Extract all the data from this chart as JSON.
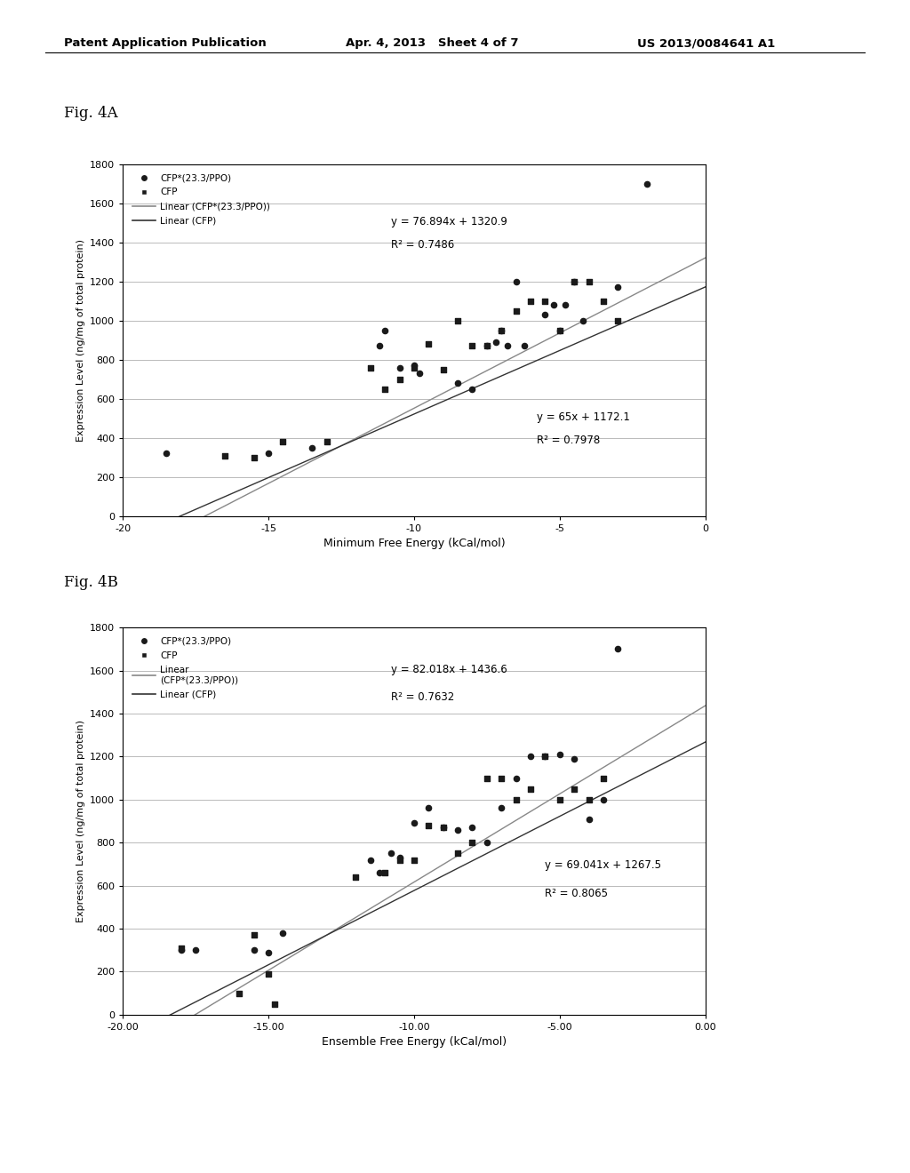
{
  "header_left": "Patent Application Publication",
  "header_mid": "Apr. 4, 2013   Sheet 4 of 7",
  "header_right": "US 2013/0084641 A1",
  "fig4a_label": "Fig. 4A",
  "fig4b_label": "Fig. 4B",
  "fig4a": {
    "cfp_ppo_x": [
      -18.5,
      -15.0,
      -13.5,
      -11.2,
      -11.0,
      -10.5,
      -10.0,
      -9.8,
      -8.5,
      -8.0,
      -7.5,
      -7.2,
      -7.0,
      -6.8,
      -6.5,
      -6.2,
      -5.5,
      -5.2,
      -5.0,
      -4.8,
      -4.5,
      -4.2,
      -3.0,
      -2.0
    ],
    "cfp_ppo_y": [
      320,
      320,
      350,
      870,
      950,
      760,
      770,
      730,
      680,
      650,
      870,
      890,
      950,
      870,
      1200,
      870,
      1030,
      1080,
      950,
      1080,
      1200,
      1000,
      1170,
      1700
    ],
    "cfp_x": [
      -16.5,
      -15.5,
      -14.5,
      -13.0,
      -11.5,
      -11.0,
      -10.5,
      -10.0,
      -9.5,
      -9.0,
      -8.5,
      -8.0,
      -7.5,
      -7.0,
      -6.5,
      -6.0,
      -5.5,
      -5.0,
      -4.5,
      -4.0,
      -3.5,
      -3.0
    ],
    "cfp_y": [
      310,
      300,
      380,
      380,
      760,
      650,
      700,
      760,
      880,
      750,
      1000,
      870,
      870,
      950,
      1050,
      1100,
      1100,
      950,
      1200,
      1200,
      1100,
      1000
    ],
    "line1_eq": "y = 76.894x + 1320.9",
    "line1_r2": "R² = 0.7486",
    "line2_eq": "y = 65x + 1172.1",
    "line2_r2": "R² = 0.7978",
    "slope1": 76.894,
    "intercept1": 1320.9,
    "slope2": 65.0,
    "intercept2": 1172.1,
    "xlabel": "Minimum Free Energy (kCal/mol)",
    "ylabel": "Expression Level (ng/mg of total protein)",
    "xlim": [
      -20,
      0
    ],
    "ylim": [
      0,
      1800
    ],
    "xticks": [
      -20,
      -15,
      -10,
      -5,
      0
    ],
    "xticklabels": [
      "-20",
      "-15",
      "-10",
      "-5",
      "0"
    ],
    "yticks": [
      0,
      200,
      400,
      600,
      800,
      1000,
      1200,
      1400,
      1600,
      1800
    ]
  },
  "fig4b": {
    "cfp_ppo_x": [
      -18.0,
      -17.5,
      -15.5,
      -15.0,
      -14.5,
      -11.5,
      -11.2,
      -10.8,
      -10.5,
      -10.0,
      -9.5,
      -9.0,
      -8.5,
      -8.0,
      -7.5,
      -7.0,
      -6.5,
      -6.0,
      -5.5,
      -5.0,
      -4.5,
      -4.0,
      -3.5,
      -3.0
    ],
    "cfp_ppo_y": [
      300,
      300,
      300,
      290,
      380,
      720,
      660,
      750,
      730,
      890,
      960,
      870,
      860,
      870,
      800,
      960,
      1100,
      1200,
      1200,
      1210,
      1190,
      910,
      1000,
      1700
    ],
    "cfp_x": [
      -18.0,
      -16.0,
      -15.5,
      -15.0,
      -14.8,
      -12.0,
      -11.0,
      -10.5,
      -10.0,
      -9.5,
      -9.0,
      -8.5,
      -8.0,
      -7.5,
      -7.0,
      -6.5,
      -6.0,
      -5.5,
      -5.0,
      -4.5,
      -4.0,
      -3.5
    ],
    "cfp_y": [
      310,
      100,
      370,
      190,
      50,
      640,
      660,
      720,
      720,
      880,
      870,
      750,
      800,
      1100,
      1100,
      1000,
      1050,
      1200,
      1000,
      1050,
      1000,
      1100
    ],
    "line1_eq": "y = 82.018x + 1436.6",
    "line1_r2": "R² = 0.7632",
    "line2_eq": "y = 69.041x + 1267.5",
    "line2_r2": "R² = 0.8065",
    "slope1": 82.018,
    "intercept1": 1436.6,
    "slope2": 69.041,
    "intercept2": 1267.5,
    "xlabel": "Ensemble Free Energy (kCal/mol)",
    "ylabel": "Expression Level (ng/mg of total protein)",
    "xlim": [
      -20,
      0
    ],
    "ylim": [
      0,
      1800
    ],
    "xticks": [
      -20.0,
      -15.0,
      -10.0,
      -5.0,
      0.0
    ],
    "yticks": [
      0,
      200,
      400,
      600,
      800,
      1000,
      1200,
      1400,
      1600,
      1800
    ],
    "xticklabels": [
      "-20.00",
      "-15.00",
      "-10.00",
      "-5.00",
      "0.00"
    ]
  },
  "background_color": "#ffffff",
  "plot_bg_color": "#ffffff",
  "grid_color": "#b0b0b0",
  "dot_color": "#1a1a1a",
  "square_color": "#1a1a1a",
  "line1_color": "#888888",
  "line2_color": "#333333"
}
